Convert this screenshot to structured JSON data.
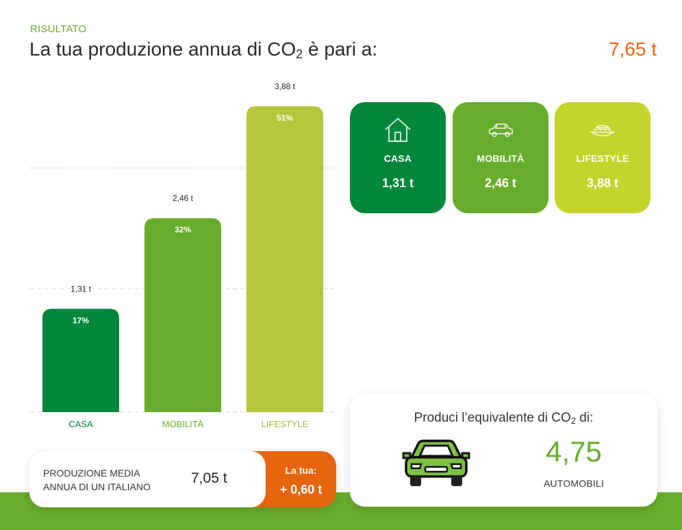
{
  "header": {
    "eyebrow": "RISULTATO",
    "title_before": "La tua produzione annua di CO",
    "title_sub": "2",
    "title_after": " è pari a:",
    "total": "7,65 t"
  },
  "chart_data": {
    "type": "bar",
    "categories": [
      "CASA",
      "MOBILITÀ",
      "LIFESTYLE"
    ],
    "values": [
      1.31,
      2.46,
      3.88
    ],
    "value_labels": [
      "1,31 t",
      "2,46 t",
      "3,88 t"
    ],
    "percent_labels": [
      "17%",
      "32%",
      "51%"
    ],
    "colors": [
      "#00873a",
      "#67ad2b",
      "#b5c63c"
    ],
    "label_colors": [
      "#00873a",
      "#67ad2b",
      "#a9b83a"
    ],
    "ylim": [
      0,
      4.5
    ],
    "grid": true,
    "title": "",
    "xlabel": "",
    "ylabel": ""
  },
  "cards": [
    {
      "label": "CASA",
      "value": "1,31 t",
      "icon": "house-icon",
      "color": "#00873a"
    },
    {
      "label": "MOBILITÀ",
      "value": "2,46 t",
      "icon": "car-icon",
      "color": "#67ad2b"
    },
    {
      "label": "LIFESTYLE",
      "value": "3,88 t",
      "icon": "food-bowl-icon",
      "color": "#c5d42c"
    }
  ],
  "equivalent": {
    "title_before": "Produci l’equivalente di CO",
    "title_sub": "2",
    "title_after": " di:",
    "number": "4,75",
    "unit": "AUTOMOBILI",
    "icon": "car-icon"
  },
  "comparison": {
    "label": "PRODUZIONE MEDIA ANNUA DI UN ITALIANO",
    "average": "7,05 t",
    "your_label": "La tua:",
    "your_diff": "+ 0,60 t"
  }
}
